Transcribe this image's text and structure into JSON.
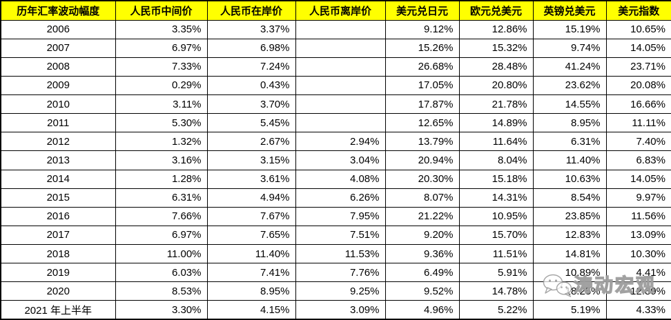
{
  "table": {
    "headers": [
      "历年汇率波动幅度",
      "人民币中间价",
      "人民币在岸价",
      "人民币离岸价",
      "美元兑日元",
      "欧元兑美元",
      "英镑兑美元",
      "美元指数"
    ],
    "rows": [
      {
        "label": "2006",
        "values": [
          "3.35%",
          "3.37%",
          "",
          "9.12%",
          "12.86%",
          "15.19%",
          "10.65%"
        ]
      },
      {
        "label": "2007",
        "values": [
          "6.97%",
          "6.98%",
          "",
          "15.26%",
          "15.32%",
          "9.74%",
          "14.05%"
        ]
      },
      {
        "label": "2008",
        "values": [
          "7.33%",
          "7.24%",
          "",
          "26.68%",
          "28.48%",
          "41.24%",
          "23.71%"
        ]
      },
      {
        "label": "2009",
        "values": [
          "0.29%",
          "0.43%",
          "",
          "17.05%",
          "20.80%",
          "23.62%",
          "20.08%"
        ]
      },
      {
        "label": "2010",
        "values": [
          "3.11%",
          "3.70%",
          "",
          "17.87%",
          "21.78%",
          "14.55%",
          "16.66%"
        ]
      },
      {
        "label": "2011",
        "values": [
          "5.30%",
          "5.45%",
          "",
          "12.65%",
          "14.89%",
          "8.95%",
          "11.11%"
        ]
      },
      {
        "label": "2012",
        "values": [
          "1.32%",
          "2.67%",
          "2.94%",
          "13.79%",
          "11.64%",
          "6.31%",
          "7.40%"
        ]
      },
      {
        "label": "2013",
        "values": [
          "3.16%",
          "3.15%",
          "3.04%",
          "20.94%",
          "8.04%",
          "11.40%",
          "6.83%"
        ]
      },
      {
        "label": "2014",
        "values": [
          "1.28%",
          "3.61%",
          "4.08%",
          "20.30%",
          "15.18%",
          "10.63%",
          "14.05%"
        ]
      },
      {
        "label": "2015",
        "values": [
          "6.31%",
          "4.94%",
          "6.26%",
          "8.07%",
          "14.31%",
          "8.54%",
          "9.97%"
        ]
      },
      {
        "label": "2016",
        "values": [
          "7.66%",
          "7.67%",
          "7.95%",
          "21.22%",
          "10.95%",
          "23.85%",
          "11.56%"
        ]
      },
      {
        "label": "2017",
        "values": [
          "6.97%",
          "7.65%",
          "7.51%",
          "9.20%",
          "15.70%",
          "12.83%",
          "13.09%"
        ]
      },
      {
        "label": "2018",
        "values": [
          "11.00%",
          "11.40%",
          "11.53%",
          "9.36%",
          "11.51%",
          "14.81%",
          "10.30%"
        ]
      },
      {
        "label": "2019",
        "values": [
          "6.03%",
          "7.41%",
          "7.76%",
          "6.49%",
          "5.91%",
          "10.89%",
          "4.41%"
        ]
      },
      {
        "label": "2020",
        "values": [
          "8.53%",
          "8.95%",
          "9.25%",
          "9.52%",
          "14.78%",
          "18.25%",
          "12.89%"
        ]
      },
      {
        "label": "2021 年上半年",
        "values": [
          "3.30%",
          "4.15%",
          "3.09%",
          "4.96%",
          "5.22%",
          "5.19%",
          "4.33%"
        ]
      }
    ]
  },
  "watermark": {
    "text": "涛动宏观",
    "icon": "wechat-icon"
  },
  "colors": {
    "header_bg": "#FFFF00",
    "header_text": "#000000",
    "border": "#000000",
    "cell_text": "#000000",
    "watermark_outline": "#969696"
  }
}
